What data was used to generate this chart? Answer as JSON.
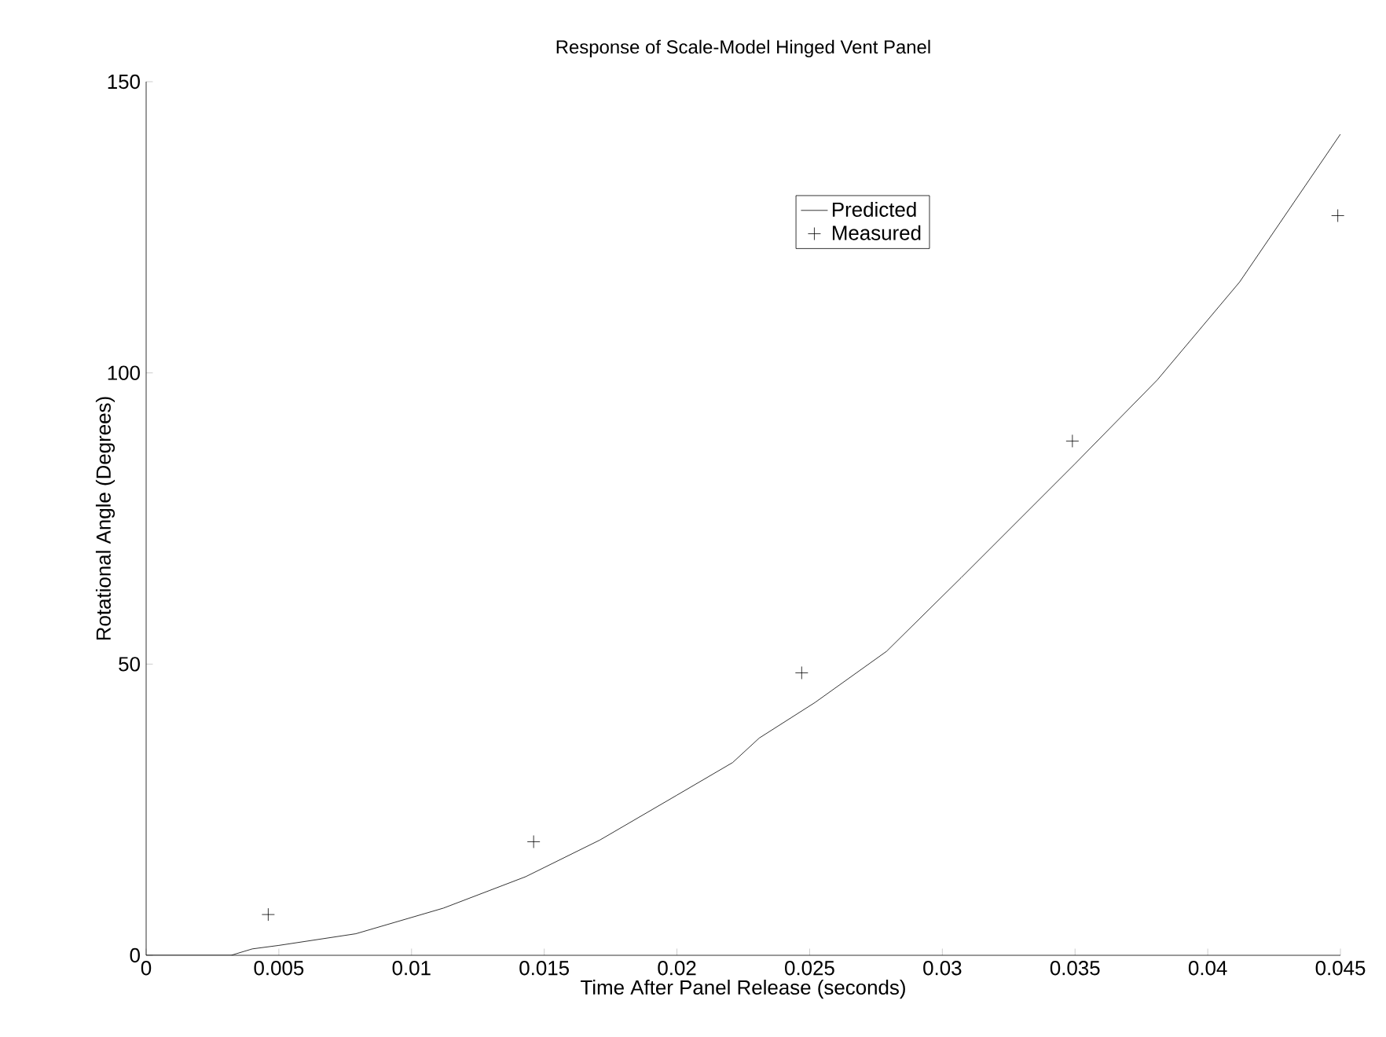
{
  "chart_data": {
    "type": "line",
    "title": "Response of Scale-Model Hinged Vent Panel",
    "xlabel": "Time After Panel Release (seconds)",
    "ylabel": "Rotational Angle (Degrees)",
    "xlim": [
      0,
      0.045
    ],
    "ylim": [
      0,
      150
    ],
    "xticks": [
      0,
      0.005,
      0.01,
      0.015,
      0.02,
      0.025,
      0.03,
      0.035,
      0.04,
      0.045
    ],
    "yticks": [
      0,
      50,
      100,
      150
    ],
    "legend": "top right",
    "grid": false,
    "series": [
      {
        "name": "Predicted",
        "color": "#000000",
        "marker": "none",
        "line_style": "solid",
        "x": [
          0,
          0.0032,
          0.004,
          0.005,
          0.0079,
          0.0112,
          0.0143,
          0.0171,
          0.02,
          0.0221,
          0.0231,
          0.0252,
          0.0279,
          0.0307,
          0.035,
          0.0381,
          0.0412,
          0.045
        ],
        "values": [
          0,
          0,
          1.1,
          1.7,
          3.7,
          8.1,
          13.5,
          19.8,
          27.5,
          33.1,
          37.3,
          43.4,
          52.2,
          64.8,
          84.4,
          98.8,
          115.6,
          141
        ]
      },
      {
        "name": "Measured",
        "type": "scatter",
        "color": "#000000",
        "marker": "cross",
        "x": [
          0.0046,
          0.0146,
          0.0247,
          0.0349,
          0.0449
        ],
        "values": [
          7,
          19.5,
          48.5,
          88.3,
          127
        ]
      }
    ]
  }
}
